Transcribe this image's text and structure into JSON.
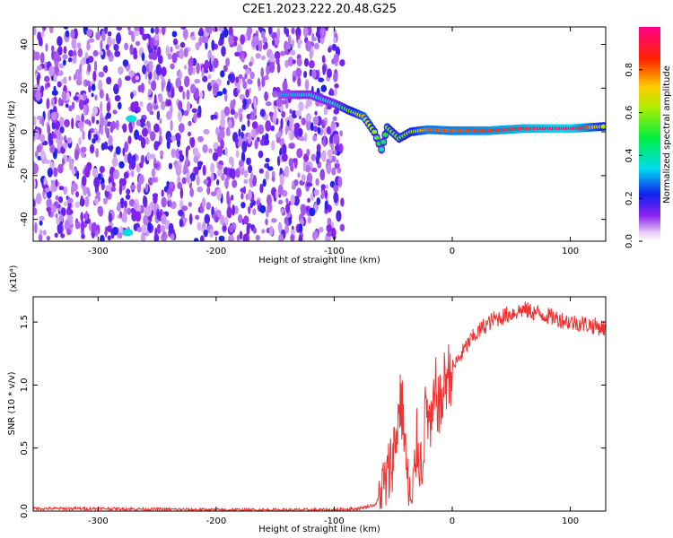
{
  "figure_title": "C2E1.2023.222.20.48.G25",
  "chart_data": [
    {
      "type": "heatmap",
      "title": "",
      "xlabel": "Height of straight line (km)",
      "ylabel": "Frequency (Hz)",
      "xlim": [
        -355,
        130
      ],
      "ylim": [
        -50,
        48
      ],
      "xticks": [
        -300,
        -200,
        -100,
        0,
        100
      ],
      "xtick_labels": [
        "-300",
        "-200",
        "-100",
        "0",
        "100"
      ],
      "yticks": [
        -40,
        -20,
        0,
        20,
        40
      ],
      "ytick_labels": [
        "-40",
        "-20",
        "0",
        "20",
        "40"
      ],
      "colorbar": {
        "label": "Normalized spectral amplitude",
        "range": [
          0,
          1
        ],
        "ticks": [
          0.0,
          0.2,
          0.4,
          0.6,
          0.8
        ],
        "tick_labels": [
          "0.0",
          "0.2",
          "0.4",
          "0.6",
          "0.8"
        ]
      },
      "noise_region": {
        "x": [
          -355,
          -93
        ],
        "y": [
          -50,
          48
        ],
        "level": 0.2
      },
      "ridge": [
        {
          "x": -145,
          "y": 17,
          "amp": 0.3
        },
        {
          "x": -120,
          "y": 17,
          "amp": 0.35
        },
        {
          "x": -100,
          "y": 13,
          "amp": 0.35
        },
        {
          "x": -88,
          "y": 10,
          "amp": 0.55
        },
        {
          "x": -75,
          "y": 7,
          "amp": 0.75
        },
        {
          "x": -66,
          "y": 0,
          "amp": 0.6
        },
        {
          "x": -60,
          "y": -8,
          "amp": 0.4
        },
        {
          "x": -55,
          "y": 2,
          "amp": 0.55
        },
        {
          "x": -45,
          "y": -3,
          "amp": 0.55
        },
        {
          "x": -35,
          "y": 0,
          "amp": 0.6
        },
        {
          "x": -20,
          "y": 1,
          "amp": 0.8
        },
        {
          "x": 0,
          "y": 0.5,
          "amp": 0.8
        },
        {
          "x": 30,
          "y": 0.5,
          "amp": 0.85
        },
        {
          "x": 60,
          "y": 1.5,
          "amp": 0.9
        },
        {
          "x": 100,
          "y": 1.5,
          "amp": 1.0
        },
        {
          "x": 130,
          "y": 2.5,
          "amp": 0.6
        }
      ],
      "isolated_blobs": [
        {
          "x": -272,
          "y": 6,
          "amp": 0.35
        },
        {
          "x": -275,
          "y": -46,
          "amp": 0.35
        }
      ]
    },
    {
      "type": "line",
      "title": "",
      "xlabel": "Height of straight line (km)",
      "ylabel": "SNR (10 * v/v)",
      "y_multiplier_label": "(x10⁴)",
      "xlim": [
        -355,
        130
      ],
      "ylim": [
        0,
        1.7
      ],
      "xticks": [
        -300,
        -200,
        -100,
        0,
        100
      ],
      "xtick_labels": [
        "-300",
        "-200",
        "-100",
        "0",
        "100"
      ],
      "yticks": [
        0.0,
        0.5,
        1.0,
        1.5
      ],
      "ytick_labels": [
        "0.0",
        "0.5",
        "1.0",
        "1.5"
      ],
      "line_color": "#ee3333",
      "x": [
        -355,
        -300,
        -200,
        -100,
        -80,
        -65,
        -55,
        -48,
        -44,
        -41,
        -38,
        -34,
        -30,
        -26,
        -22,
        -18,
        -14,
        -10,
        -6,
        -2,
        5,
        15,
        25,
        35,
        45,
        60,
        80,
        100,
        115,
        130
      ],
      "y": [
        0.02,
        0.02,
        0.01,
        0.01,
        0.02,
        0.05,
        0.25,
        0.55,
        0.9,
        0.7,
        0.2,
        0.05,
        0.55,
        0.35,
        0.85,
        0.6,
        0.95,
        0.8,
        1.05,
        1.1,
        1.2,
        1.35,
        1.45,
        1.52,
        1.55,
        1.6,
        1.55,
        1.5,
        1.48,
        1.45
      ]
    }
  ]
}
